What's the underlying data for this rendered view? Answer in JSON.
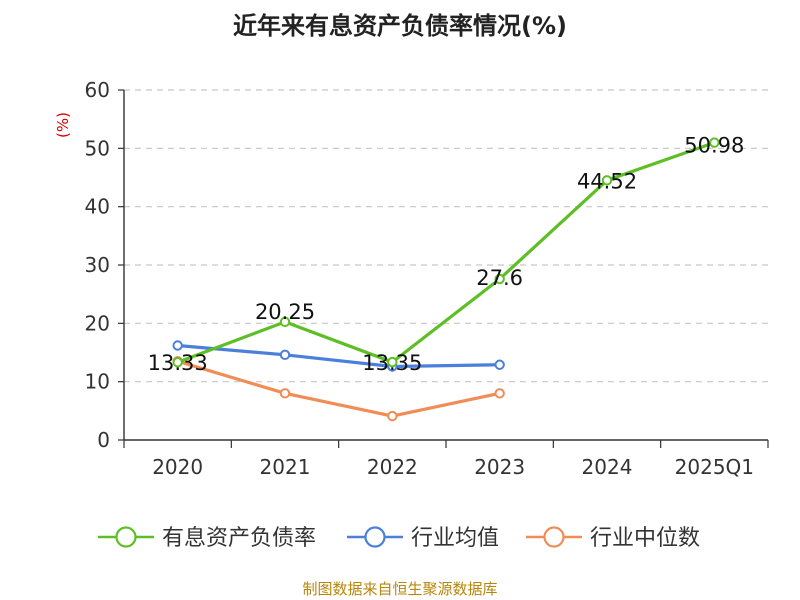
{
  "chart_data": {
    "type": "line",
    "title": "近年来有息资产负债率情况(%)",
    "ylabel": "(%)",
    "ylim": [
      0,
      60
    ],
    "yticks": [
      0,
      10,
      20,
      30,
      40,
      50,
      60
    ],
    "categories": [
      "2020",
      "2021",
      "2022",
      "2023",
      "2024",
      "2025Q1"
    ],
    "grid": true,
    "legend_position": "bottom",
    "series": [
      {
        "name": "有息资产负债率",
        "color": "#5dbf25",
        "values": [
          13.33,
          20.25,
          13.35,
          27.6,
          44.52,
          50.98
        ],
        "labels": [
          "13.33",
          "20.25",
          "13.35",
          "27.6",
          "44.52",
          "50.98"
        ]
      },
      {
        "name": "行业均值",
        "color": "#4a7fdb",
        "values": [
          16.2,
          14.6,
          12.6,
          12.9,
          null,
          null
        ]
      },
      {
        "name": "行业中位数",
        "color": "#f28c55",
        "values": [
          13.5,
          8.0,
          4.1,
          8.0,
          null,
          null
        ]
      }
    ]
  },
  "source": "制图数据来自恒生聚源数据库"
}
